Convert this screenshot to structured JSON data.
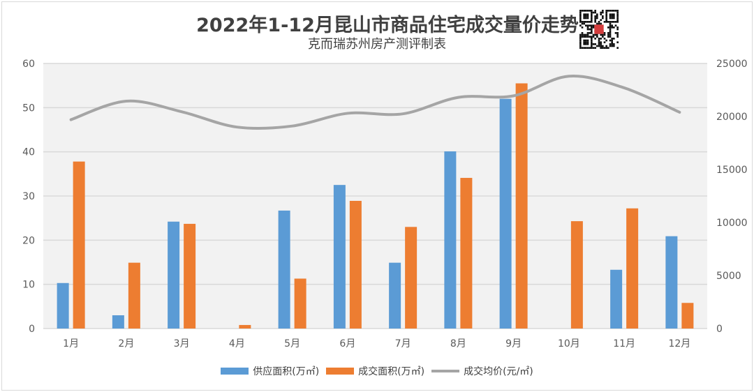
{
  "title": "2022年1-12月昆山市商品住宅成交量价走势",
  "subtitle": "克而瑞苏州房产测评制表",
  "colors": {
    "supply": "#5b9bd5",
    "deal": "#ed7d31",
    "price": "#a5a5a5"
  },
  "chart_data": {
    "type": "bar+line",
    "categories": [
      "1月",
      "2月",
      "3月",
      "4月",
      "5月",
      "6月",
      "7月",
      "8月",
      "9月",
      "10月",
      "11月",
      "12月"
    ],
    "series": [
      {
        "name": "供应面积(万㎡)",
        "type": "bar",
        "axis": "left",
        "values": [
          10.3,
          3.0,
          24.2,
          0,
          26.7,
          32.5,
          14.9,
          40.1,
          52.0,
          0,
          13.3,
          20.9
        ]
      },
      {
        "name": "成交面积(万㎡)",
        "type": "bar",
        "axis": "left",
        "values": [
          37.8,
          14.9,
          23.7,
          0.8,
          11.3,
          28.9,
          23.0,
          34.1,
          55.5,
          24.3,
          27.2,
          5.8
        ]
      },
      {
        "name": "成交均价(元/㎡)",
        "type": "line",
        "axis": "right",
        "values": [
          19700,
          21450,
          20450,
          19000,
          19100,
          20300,
          20250,
          21800,
          21950,
          23800,
          22700,
          20400
        ]
      }
    ],
    "left_axis": {
      "min": 0,
      "max": 60,
      "ticks": [
        "0",
        "10",
        "20",
        "30",
        "40",
        "50",
        "60"
      ]
    },
    "right_axis": {
      "min": 0,
      "max": 25000,
      "ticks": [
        "0",
        "5000",
        "10000",
        "15000",
        "20000",
        "25000"
      ]
    },
    "grid": true,
    "legend_position": "bottom"
  }
}
